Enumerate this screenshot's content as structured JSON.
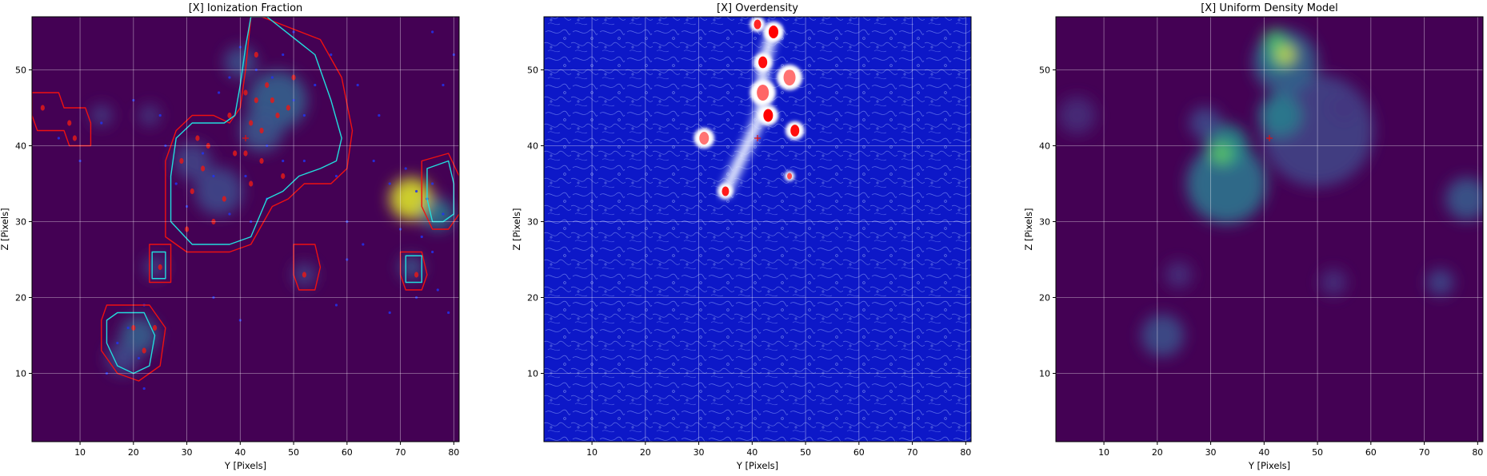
{
  "chart_data": [
    {
      "type": "heatmap",
      "title": "[X] Ionization Fraction",
      "xlabel": "Y [Pixels]",
      "ylabel": "Z [Pixels]",
      "xlim": [
        1,
        81
      ],
      "ylim": [
        1,
        57
      ],
      "xticks": [
        10,
        20,
        30,
        40,
        50,
        60,
        70,
        80
      ],
      "yticks": [
        10,
        20,
        30,
        40,
        50
      ],
      "grid": true,
      "colormap": "viridis",
      "background": "#440154",
      "marker": {
        "y": 41,
        "z": 41,
        "color": "#e01010"
      },
      "blobs": [
        {
          "y": 72,
          "z": 33,
          "r": 4.0,
          "v": 0.95
        },
        {
          "y": 47,
          "z": 46,
          "r": 5.5,
          "v": 0.3
        },
        {
          "y": 44,
          "z": 42,
          "r": 4.0,
          "v": 0.26
        },
        {
          "y": 36,
          "z": 34,
          "r": 4.5,
          "v": 0.22
        },
        {
          "y": 31,
          "z": 38,
          "r": 3.5,
          "v": 0.2
        },
        {
          "y": 40,
          "z": 51,
          "r": 3.0,
          "v": 0.24
        },
        {
          "y": 21,
          "z": 15,
          "r": 3.5,
          "v": 0.3
        },
        {
          "y": 18,
          "z": 12,
          "r": 3.0,
          "v": 0.22
        },
        {
          "y": 14,
          "z": 44,
          "r": 2.0,
          "v": 0.18
        },
        {
          "y": 23,
          "z": 44,
          "r": 2.0,
          "v": 0.16
        },
        {
          "y": 24,
          "z": 24,
          "r": 2.0,
          "v": 0.22
        },
        {
          "y": 52,
          "z": 23,
          "r": 2.2,
          "v": 0.2
        },
        {
          "y": 72,
          "z": 24,
          "r": 2.2,
          "v": 0.28
        },
        {
          "y": 77,
          "z": 31,
          "r": 3.0,
          "v": 0.4
        }
      ],
      "contours": [
        {
          "level": "outer",
          "color": "#ee1111",
          "points": [
            [
              44,
              57
            ],
            [
              55,
              54
            ],
            [
              59,
              49
            ],
            [
              61,
              42
            ],
            [
              60,
              37
            ],
            [
              57,
              35
            ],
            [
              52,
              35
            ],
            [
              49,
              33
            ],
            [
              46,
              32
            ],
            [
              42,
              27
            ],
            [
              38,
              26
            ],
            [
              30,
              26
            ],
            [
              26,
              28
            ],
            [
              26,
              33
            ],
            [
              26,
              38
            ],
            [
              28,
              42
            ],
            [
              31,
              44
            ],
            [
              35,
              44
            ],
            [
              38,
              43
            ],
            [
              40,
              45
            ],
            [
              41,
              50
            ],
            [
              42,
              57
            ]
          ]
        },
        {
          "level": "inner",
          "color": "#22dddd",
          "points": [
            [
              45,
              57
            ],
            [
              54,
              52
            ],
            [
              57,
              46
            ],
            [
              59,
              41
            ],
            [
              58,
              38
            ],
            [
              55,
              37
            ],
            [
              51,
              36
            ],
            [
              48,
              34
            ],
            [
              45,
              33
            ],
            [
              42,
              28
            ],
            [
              38,
              27
            ],
            [
              31,
              27
            ],
            [
              27,
              30
            ],
            [
              27,
              36
            ],
            [
              28,
              41
            ],
            [
              31,
              43
            ],
            [
              35,
              43
            ],
            [
              37,
              43
            ],
            [
              39,
              44
            ],
            [
              40,
              48
            ],
            [
              41,
              53
            ],
            [
              42,
              57
            ]
          ]
        },
        {
          "level": "outer",
          "color": "#ee1111",
          "points": [
            [
              15,
              19
            ],
            [
              23,
              19
            ],
            [
              26,
              16
            ],
            [
              25,
              11
            ],
            [
              21,
              9
            ],
            [
              17,
              10
            ],
            [
              14,
              13
            ],
            [
              14,
              17
            ]
          ]
        },
        {
          "level": "inner",
          "color": "#22dddd",
          "points": [
            [
              17,
              18
            ],
            [
              22,
              18
            ],
            [
              24,
              15
            ],
            [
              23,
              11
            ],
            [
              20,
              10
            ],
            [
              17,
              11
            ],
            [
              15,
              14
            ],
            [
              15,
              17
            ]
          ]
        },
        {
          "level": "outer",
          "color": "#ee1111",
          "points": [
            [
              1,
              47
            ],
            [
              6,
              47
            ],
            [
              7,
              45
            ],
            [
              11,
              45
            ],
            [
              12,
              43
            ],
            [
              12,
              40
            ],
            [
              8,
              40
            ],
            [
              7,
              42
            ],
            [
              2,
              42
            ],
            [
              1,
              44
            ]
          ]
        },
        {
          "level": "outer",
          "color": "#ee1111",
          "points": [
            [
              23,
              27
            ],
            [
              27,
              27
            ],
            [
              27,
              22
            ],
            [
              23,
              22
            ]
          ]
        },
        {
          "level": "inner",
          "color": "#22dddd",
          "points": [
            [
              23.5,
              26
            ],
            [
              26,
              26
            ],
            [
              26,
              22.5
            ],
            [
              23.5,
              22.5
            ]
          ]
        },
        {
          "level": "outer",
          "color": "#ee1111",
          "points": [
            [
              50,
              27
            ],
            [
              54,
              27
            ],
            [
              55,
              24
            ],
            [
              54,
              21
            ],
            [
              51,
              21
            ],
            [
              50,
              23
            ]
          ]
        },
        {
          "level": "outer",
          "color": "#ee1111",
          "points": [
            [
              70,
              26
            ],
            [
              74,
              26
            ],
            [
              75,
              23
            ],
            [
              74,
              21
            ],
            [
              71,
              21
            ],
            [
              70,
              23
            ]
          ]
        },
        {
          "level": "inner",
          "color": "#22dddd",
          "points": [
            [
              71,
              25.5
            ],
            [
              74,
              25.5
            ],
            [
              74,
              22
            ],
            [
              71,
              22
            ]
          ]
        },
        {
          "level": "outer",
          "color": "#ee1111",
          "points": [
            [
              74,
              38
            ],
            [
              79,
              39
            ],
            [
              81,
              36
            ],
            [
              81,
              31
            ],
            [
              79,
              29
            ],
            [
              76,
              29
            ],
            [
              74,
              32
            ]
          ]
        },
        {
          "level": "inner",
          "color": "#22dddd",
          "points": [
            [
              75,
              37
            ],
            [
              79,
              38
            ],
            [
              80,
              35
            ],
            [
              80,
              31
            ],
            [
              78,
              30
            ],
            [
              76,
              30
            ],
            [
              75,
              33
            ]
          ]
        }
      ],
      "dots_red": [
        [
          38,
          44
        ],
        [
          41,
          47
        ],
        [
          43,
          46
        ],
        [
          46,
          46
        ],
        [
          47,
          44
        ],
        [
          49,
          45
        ],
        [
          44,
          42
        ],
        [
          48,
          36
        ],
        [
          35,
          30
        ],
        [
          30,
          29
        ],
        [
          31,
          34
        ],
        [
          34,
          40
        ],
        [
          39,
          39
        ],
        [
          42,
          35
        ],
        [
          44,
          38
        ],
        [
          25,
          24
        ],
        [
          20,
          16
        ],
        [
          22,
          13
        ],
        [
          24,
          16
        ],
        [
          52,
          23
        ],
        [
          73,
          23
        ],
        [
          8,
          43
        ],
        [
          3,
          45
        ],
        [
          9,
          41
        ],
        [
          43,
          52
        ],
        [
          45,
          48
        ],
        [
          42,
          43
        ],
        [
          33,
          37
        ],
        [
          37,
          33
        ],
        [
          50,
          49
        ],
        [
          41,
          39
        ],
        [
          29,
          38
        ],
        [
          32,
          41
        ]
      ],
      "dots_blue": [
        [
          40,
          53
        ],
        [
          43,
          50
        ],
        [
          46,
          49
        ],
        [
          50,
          46
        ],
        [
          52,
          44
        ],
        [
          54,
          48
        ],
        [
          57,
          52
        ],
        [
          33,
          39
        ],
        [
          35,
          36
        ],
        [
          30,
          32
        ],
        [
          28,
          35
        ],
        [
          38,
          31
        ],
        [
          41,
          36
        ],
        [
          45,
          33
        ],
        [
          48,
          38
        ],
        [
          52,
          38
        ],
        [
          58,
          36
        ],
        [
          65,
          38
        ],
        [
          68,
          35
        ],
        [
          71,
          37
        ],
        [
          73,
          34
        ],
        [
          75,
          33
        ],
        [
          76,
          35
        ],
        [
          78,
          31
        ],
        [
          66,
          44
        ],
        [
          62,
          48
        ],
        [
          70,
          29
        ],
        [
          74,
          28
        ],
        [
          76,
          26
        ],
        [
          77,
          21
        ],
        [
          79,
          18
        ],
        [
          73,
          20
        ],
        [
          68,
          18
        ],
        [
          60,
          25
        ],
        [
          58,
          19
        ],
        [
          78,
          48
        ],
        [
          80,
          52
        ],
        [
          76,
          55
        ],
        [
          21,
          12
        ],
        [
          19,
          16
        ],
        [
          17,
          14
        ],
        [
          22,
          19
        ],
        [
          22,
          8
        ],
        [
          15,
          10
        ],
        [
          6,
          41
        ],
        [
          14,
          43
        ],
        [
          20,
          46
        ],
        [
          25,
          44
        ],
        [
          26,
          40
        ],
        [
          10,
          38
        ],
        [
          35,
          20
        ],
        [
          40,
          17
        ],
        [
          60,
          30
        ],
        [
          63,
          27
        ],
        [
          45,
          40
        ],
        [
          36,
          47
        ],
        [
          38,
          49
        ],
        [
          48,
          52
        ],
        [
          50,
          55
        ],
        [
          42,
          30
        ]
      ]
    },
    {
      "type": "heatmap",
      "title": "[X] Overdensity",
      "xlabel": "Y [Pixels]",
      "ylabel": "Z [Pixels]",
      "xlim": [
        1,
        81
      ],
      "ylim": [
        1,
        57
      ],
      "xticks": [
        10,
        20,
        30,
        40,
        50,
        60,
        70,
        80
      ],
      "yticks": [
        10,
        20,
        30,
        40,
        50
      ],
      "grid": true,
      "colormap": "seismic",
      "background": "#0d18c8",
      "marker": {
        "y": 41,
        "z": 41,
        "color": "#e01010"
      },
      "filament": [
        [
          35,
          34
        ],
        [
          37,
          37
        ],
        [
          39,
          40
        ],
        [
          41,
          43
        ],
        [
          42,
          46
        ],
        [
          42,
          50
        ],
        [
          43,
          53
        ],
        [
          44,
          55
        ]
      ],
      "peaks": [
        {
          "y": 44,
          "z": 55,
          "r": 1.2,
          "v": 1.0
        },
        {
          "y": 41,
          "z": 56,
          "r": 0.9,
          "v": 0.85
        },
        {
          "y": 42,
          "z": 51,
          "r": 1.1,
          "v": 0.95
        },
        {
          "y": 43,
          "z": 44,
          "r": 1.2,
          "v": 1.0
        },
        {
          "y": 48,
          "z": 42,
          "r": 1.1,
          "v": 0.95
        },
        {
          "y": 35,
          "z": 34,
          "r": 0.9,
          "v": 0.9
        },
        {
          "y": 47,
          "z": 36,
          "r": 0.6,
          "v": 0.7
        },
        {
          "y": 31,
          "z": 41,
          "r": 1.2,
          "v": 0.55
        },
        {
          "y": 42,
          "z": 47,
          "r": 1.5,
          "v": 0.6
        },
        {
          "y": 47,
          "z": 49,
          "r": 1.5,
          "v": 0.55
        }
      ]
    },
    {
      "type": "heatmap",
      "title": "[X] Uniform Density Model",
      "xlabel": "Y [Pixels]",
      "ylabel": "Z [Pixels]",
      "xlim": [
        1,
        81
      ],
      "ylim": [
        1,
        57
      ],
      "xticks": [
        10,
        20,
        30,
        40,
        50,
        60,
        70,
        80
      ],
      "yticks": [
        10,
        20,
        30,
        40,
        50
      ],
      "grid": true,
      "colormap": "viridis",
      "background": "#440154",
      "marker": {
        "y": 41,
        "z": 41,
        "color": "#e01010"
      },
      "blobs": [
        {
          "y": 50,
          "z": 42,
          "r": 10.5,
          "v": 0.2
        },
        {
          "y": 44,
          "z": 51,
          "r": 6.0,
          "v": 0.32
        },
        {
          "y": 43,
          "z": 52,
          "r": 3.0,
          "v": 0.55
        },
        {
          "y": 44,
          "z": 52,
          "r": 1.6,
          "v": 0.95
        },
        {
          "y": 42,
          "z": 54,
          "r": 2.0,
          "v": 0.7
        },
        {
          "y": 43,
          "z": 44,
          "r": 4.0,
          "v": 0.42
        },
        {
          "y": 33,
          "z": 35,
          "r": 7.5,
          "v": 0.38
        },
        {
          "y": 33,
          "z": 40,
          "r": 4.0,
          "v": 0.48
        },
        {
          "y": 32,
          "z": 39,
          "r": 2.0,
          "v": 0.75
        },
        {
          "y": 29,
          "z": 43,
          "r": 3.0,
          "v": 0.22
        },
        {
          "y": 21,
          "z": 15,
          "r": 4.0,
          "v": 0.24
        },
        {
          "y": 24,
          "z": 23,
          "r": 2.5,
          "v": 0.14
        },
        {
          "y": 53,
          "z": 22,
          "r": 2.5,
          "v": 0.14
        },
        {
          "y": 73,
          "z": 22,
          "r": 2.5,
          "v": 0.22
        },
        {
          "y": 78,
          "z": 33,
          "r": 4.0,
          "v": 0.28
        },
        {
          "y": 5,
          "z": 44,
          "r": 3.5,
          "v": 0.12
        },
        {
          "y": 55,
          "z": 45,
          "r": 3.0,
          "v": 0.16
        }
      ]
    }
  ]
}
